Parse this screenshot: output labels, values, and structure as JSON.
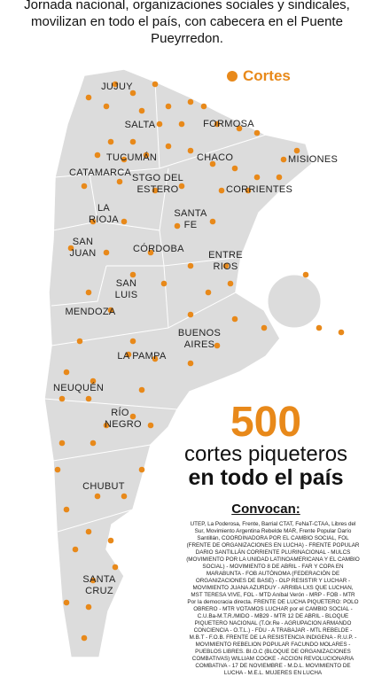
{
  "header": {
    "title": "Jornada nacional, organizaciones sociales y sindicales, movilizan en todo el país, con cabecera en el Puente Pueyrredon."
  },
  "legend": {
    "label": "Cortes"
  },
  "provinces": [
    "JUJUY",
    "SALTA",
    "FORMOSA",
    "MISIONES",
    "TUCUMÁN",
    "CHACO",
    "CATAMARCA",
    "STGO DEL ESTERO",
    "CORRIENTES",
    "LA RIOJA",
    "SANTA FE",
    "SAN JUAN",
    "CÓRDOBA",
    "ENTRE RIOS",
    "SAN LUIS",
    "MENDOZA",
    "BUENOS AIRES",
    "LA PAMPA",
    "NEUQUÉN",
    "RÍO NEGRO",
    "CHUBUT",
    "SANTA CRUZ"
  ],
  "headline": {
    "number": "500",
    "line1": "cortes piqueteros",
    "line2": "en todo el país"
  },
  "convocan": {
    "heading": "Convocan:",
    "text": "UTEP, La Poderosa, Frente, Barrial CTAT, FeNaT-CTAA, Libres del Sur, Movimiento Argentina Rebelde MAR, Frente Popular Darío Santillán, COORDINADORA POR EL CAMBIO SOCIAL, FOL (FRENTE DE ORGANIZACIONES EN LUCHA) - FRENTE POPULAR DARIO SANTILLÁN CORRIENTE PLURINACIONAL - MULCS (MOVIMIENTO POR LA UNIDAD LATINOAMERICANA Y EL CAMBIO SOCIAL) - MOVIMIENTO 8 DE ABRIL - FAR Y COPA EN MARABUNTA - FOB AUTÓNOMA (FEDERACIÓN DE ORGANIZACIONES DE BASE) - OLP RESISTIR Y LUCHAR - MOVIMIENTO JUANA AZURDUY - ARRIBA LXS QUE LUCHAN, MST TERESA VIVE, FOL - MTD Aníbal Verón - MRP - FOB - MTR Por la democracia directa. FRENTE DE LUCHA PIQUETERO: POLO OBRERO - MTR VOTAMOS LUCHAR por el CAMBIO SOCIAL - C.U.Ba-M.T.R./MIDO - MB29 - MTR 12 DE ABRIL - BLOQUE PIQUETERO NACIONAL (T.Or.Re - AGRUPACION ARMANDO CONCIENCIA - O.T.L.) - FDU - A TRABAJAR - MTL REBELDE - M.B.T - F.O.B. FRENTE DE LA RESISTENCIA INDIGENA - R.U.P. - MOVIMIENTO REBELION POPULAR FACUNDO MOLARES - PUEBLOS LIBRES. BI.O.C (BLOQUE DE ORGANIZACIONES COMBATIVAS) WILLIAM COOKE - ACCION REVOLUCIONARIA COMBATIVA - 17 DE NOVIEMBRE - M.D.L. MOVIMIENTO DE LUCHA - M.E.L. MUJERES EN LUCHA"
  }
}
